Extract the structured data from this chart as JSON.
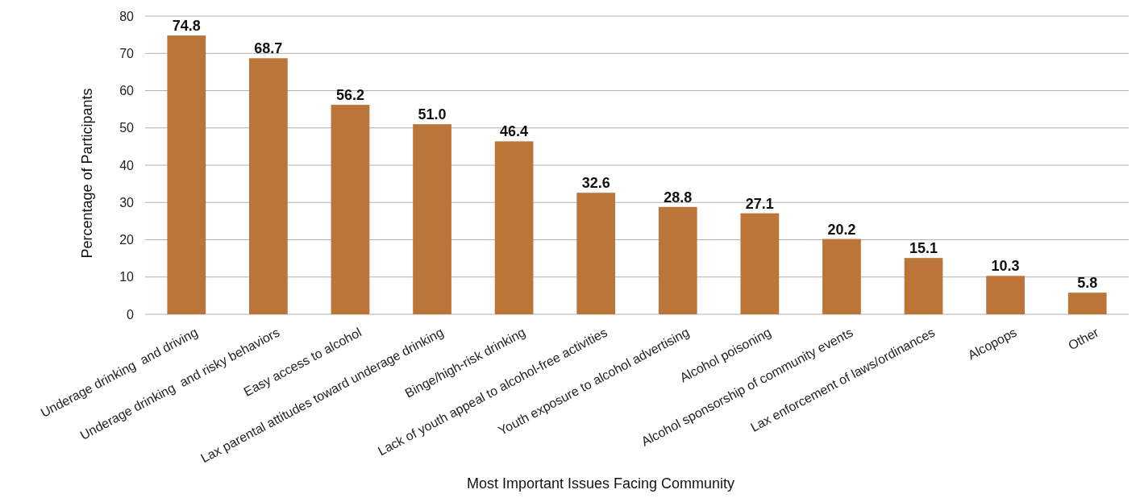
{
  "chart_data": {
    "type": "bar",
    "xlabel": "Most Important Issues Facing Community",
    "ylabel": "Percentage of Participants",
    "categories": [
      "Underage drinking  and driving",
      "Underage drinking  and risky behaviors",
      "Easy access to alcohol",
      "Lax parental attitudes toward underage drinking",
      "Binge/high-risk drinking",
      "Lack of youth appeal to alcohol-free activities",
      "Youth exposure to alcohol advertising",
      "Alcohol poisoning",
      "Alcohol sponsorship of community events",
      "Lax enforcement of laws/ordinances",
      "Alcopops",
      "Other"
    ],
    "values": [
      74.8,
      68.7,
      56.2,
      51.0,
      46.4,
      32.6,
      28.8,
      27.1,
      20.2,
      15.1,
      10.3,
      5.8
    ],
    "value_labels": [
      "74.8",
      "68.7",
      "56.2",
      "51.0",
      "46.4",
      "32.6",
      "28.8",
      "27.1",
      "20.2",
      "15.1",
      "10.3",
      "5.8"
    ],
    "color": "#bb7539",
    "ylim": [
      0,
      80
    ],
    "yticks": [
      0,
      10,
      20,
      30,
      40,
      50,
      60,
      70,
      80
    ],
    "grid": "y"
  }
}
